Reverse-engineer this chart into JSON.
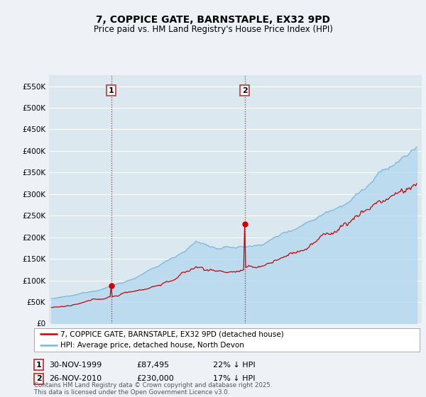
{
  "title": "7, COPPICE GATE, BARNSTAPLE, EX32 9PD",
  "subtitle": "Price paid vs. HM Land Registry's House Price Index (HPI)",
  "ylim": [
    0,
    575000
  ],
  "yticks": [
    0,
    50000,
    100000,
    150000,
    200000,
    250000,
    300000,
    350000,
    400000,
    450000,
    500000,
    550000
  ],
  "ytick_labels": [
    "£0",
    "£50K",
    "£100K",
    "£150K",
    "£200K",
    "£250K",
    "£300K",
    "£350K",
    "£400K",
    "£450K",
    "£500K",
    "£550K"
  ],
  "hpi_color": "#7ab8d9",
  "hpi_fill_color": "#b8d9ee",
  "price_color": "#cc0000",
  "vline_color": "#cc0000",
  "marker1_year": 1999.92,
  "marker1_value": 87495,
  "marker2_year": 2010.92,
  "marker2_value": 230000,
  "legend_line1": "7, COPPICE GATE, BARNSTAPLE, EX32 9PD (detached house)",
  "legend_line2": "HPI: Average price, detached house, North Devon",
  "table_row1_num": "1",
  "table_row1_date": "30-NOV-1999",
  "table_row1_price": "£87,495",
  "table_row1_hpi": "22% ↓ HPI",
  "table_row2_num": "2",
  "table_row2_date": "26-NOV-2010",
  "table_row2_price": "£230,000",
  "table_row2_hpi": "17% ↓ HPI",
  "footnote": "Contains HM Land Registry data © Crown copyright and database right 2025.\nThis data is licensed under the Open Government Licence v3.0.",
  "bg_color": "#eef2f7",
  "plot_bg_color": "#dce8f0",
  "grid_color": "#ffffff",
  "box_color": "#cc3333"
}
